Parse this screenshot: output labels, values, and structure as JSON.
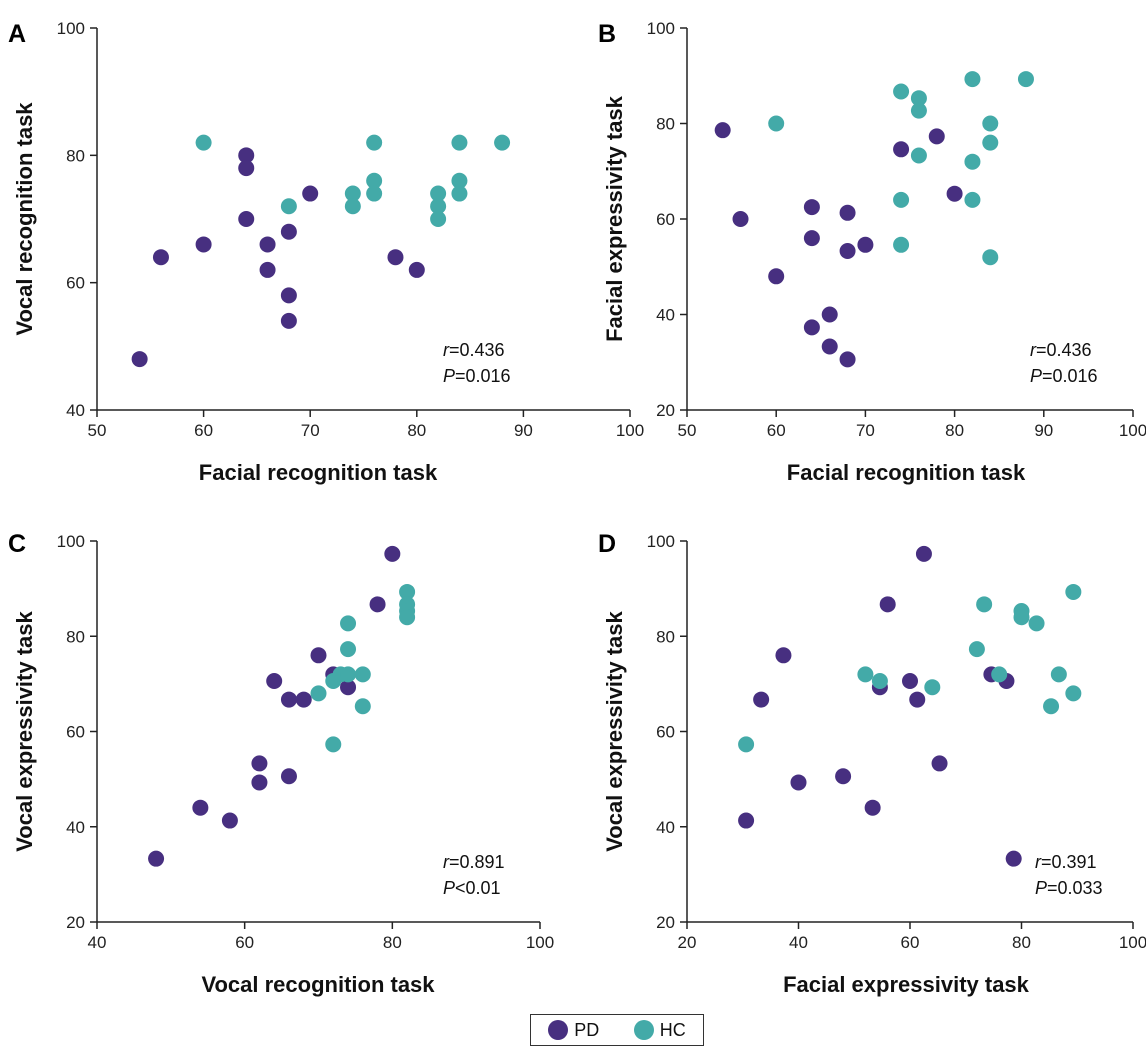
{
  "colors": {
    "PD": "#472f80",
    "HC": "#43aaa8",
    "axis": "#222222"
  },
  "legend": [
    {
      "key": "PD",
      "label": "PD"
    },
    {
      "key": "HC",
      "label": "HC"
    }
  ],
  "chart_data": [
    {
      "type": "scatter",
      "panel": "A",
      "xlabel": "Facial recognition task",
      "ylabel": "Vocal recognition task",
      "xlim": [
        50,
        100
      ],
      "ylim": [
        40,
        100
      ],
      "xticks": [
        50,
        60,
        70,
        80,
        90,
        100
      ],
      "yticks": [
        40,
        60,
        80,
        100
      ],
      "stat": {
        "r_label": "r",
        "r_value": "=0.436",
        "p_label": "P",
        "p_value": "=0.016"
      },
      "series": [
        {
          "name": "PD",
          "points": [
            [
              54,
              48
            ],
            [
              56,
              64
            ],
            [
              60,
              66
            ],
            [
              64,
              80
            ],
            [
              64,
              78
            ],
            [
              64,
              70
            ],
            [
              66,
              66
            ],
            [
              66,
              62
            ],
            [
              68,
              68
            ],
            [
              68,
              58
            ],
            [
              68,
              54
            ],
            [
              70,
              74
            ],
            [
              78,
              64
            ],
            [
              80,
              62
            ]
          ]
        },
        {
          "name": "HC",
          "points": [
            [
              60,
              82
            ],
            [
              68,
              72
            ],
            [
              74,
              74
            ],
            [
              74,
              72
            ],
            [
              76,
              82
            ],
            [
              76,
              76
            ],
            [
              76,
              74
            ],
            [
              82,
              74
            ],
            [
              82,
              72
            ],
            [
              82,
              70
            ],
            [
              84,
              82
            ],
            [
              84,
              76
            ],
            [
              84,
              74
            ],
            [
              88,
              82
            ]
          ]
        }
      ]
    },
    {
      "type": "scatter",
      "panel": "B",
      "xlabel": "Facial recognition task",
      "ylabel": "Facial expressivity task",
      "xlim": [
        50,
        100
      ],
      "ylim": [
        20,
        100
      ],
      "xticks": [
        50,
        60,
        70,
        80,
        90,
        100
      ],
      "yticks": [
        20,
        40,
        60,
        80,
        100
      ],
      "stat": {
        "r_label": "r",
        "r_value": "=0.436",
        "p_label": "P",
        "p_value": "=0.016"
      },
      "series": [
        {
          "name": "PD",
          "points": [
            [
              54,
              78.6
            ],
            [
              56,
              60
            ],
            [
              60,
              48
            ],
            [
              64,
              62.5
            ],
            [
              64,
              56
            ],
            [
              64,
              37.3
            ],
            [
              66,
              40
            ],
            [
              66,
              33.3
            ],
            [
              68,
              61.3
            ],
            [
              68,
              53.3
            ],
            [
              68,
              30.6
            ],
            [
              70,
              54.6
            ],
            [
              74,
              74.6
            ],
            [
              78,
              77.3
            ],
            [
              80,
              65.3
            ]
          ]
        },
        {
          "name": "HC",
          "points": [
            [
              60,
              80
            ],
            [
              74,
              86.7
            ],
            [
              74,
              64
            ],
            [
              74,
              54.6
            ],
            [
              76,
              85.3
            ],
            [
              76,
              82.7
            ],
            [
              76,
              73.3
            ],
            [
              82,
              89.3
            ],
            [
              82,
              72
            ],
            [
              82,
              64
            ],
            [
              84,
              80
            ],
            [
              84,
              76
            ],
            [
              84,
              52
            ],
            [
              88,
              89.3
            ]
          ]
        }
      ]
    },
    {
      "type": "scatter",
      "panel": "C",
      "xlabel": "Vocal recognition task",
      "ylabel": "Vocal expressivity task",
      "xlim": [
        40,
        100
      ],
      "ylim": [
        20,
        100
      ],
      "xticks": [
        40,
        60,
        80,
        100
      ],
      "yticks": [
        20,
        40,
        60,
        80,
        100
      ],
      "stat": {
        "r_label": "r",
        "r_value": "=0.891",
        "p_label": "P",
        "p_value": "<0.01"
      },
      "series": [
        {
          "name": "PD",
          "points": [
            [
              48,
              33.3
            ],
            [
              54,
              44
            ],
            [
              58,
              41.3
            ],
            [
              62,
              53.3
            ],
            [
              62,
              49.3
            ],
            [
              64,
              70.6
            ],
            [
              66,
              66.7
            ],
            [
              66,
              50.6
            ],
            [
              68,
              66.7
            ],
            [
              70,
              76
            ],
            [
              72,
              72
            ],
            [
              74,
              69.3
            ],
            [
              78,
              86.7
            ],
            [
              80,
              97.3
            ]
          ]
        },
        {
          "name": "HC",
          "points": [
            [
              70,
              68
            ],
            [
              72,
              70.6
            ],
            [
              72,
              57.3
            ],
            [
              73,
              72
            ],
            [
              74,
              82.7
            ],
            [
              74,
              77.3
            ],
            [
              74,
              72
            ],
            [
              76,
              72
            ],
            [
              76,
              65.3
            ],
            [
              82,
              89.3
            ],
            [
              82,
              86.7
            ],
            [
              82,
              85.3
            ],
            [
              82,
              84
            ]
          ]
        }
      ]
    },
    {
      "type": "scatter",
      "panel": "D",
      "xlabel": "Facial expressivity task",
      "ylabel": "Vocal expressivity task",
      "xlim": [
        20,
        100
      ],
      "ylim": [
        20,
        100
      ],
      "xticks": [
        20,
        40,
        60,
        80,
        100
      ],
      "yticks": [
        20,
        40,
        60,
        80,
        100
      ],
      "stat": {
        "r_label": "r",
        "r_value": "=0.391",
        "p_label": "P",
        "p_value": "=0.033"
      },
      "series": [
        {
          "name": "PD",
          "points": [
            [
              30.6,
              41.3
            ],
            [
              33.3,
              66.7
            ],
            [
              37.3,
              76
            ],
            [
              40,
              49.3
            ],
            [
              48,
              50.6
            ],
            [
              53.3,
              44
            ],
            [
              54.6,
              69.3
            ],
            [
              56,
              86.7
            ],
            [
              60,
              70.6
            ],
            [
              61.3,
              66.7
            ],
            [
              62.5,
              97.3
            ],
            [
              65.3,
              53.3
            ],
            [
              74.6,
              72
            ],
            [
              77.3,
              70.6
            ],
            [
              78.6,
              33.3
            ]
          ]
        },
        {
          "name": "HC",
          "points": [
            [
              30.6,
              57.3
            ],
            [
              52,
              72
            ],
            [
              54.6,
              70.6
            ],
            [
              64,
              69.3
            ],
            [
              72,
              77.3
            ],
            [
              73.3,
              86.7
            ],
            [
              76,
              72
            ],
            [
              80,
              85.3
            ],
            [
              80,
              84
            ],
            [
              82.7,
              82.7
            ],
            [
              85.3,
              65.3
            ],
            [
              86.7,
              72
            ],
            [
              89.3,
              89.3
            ],
            [
              89.3,
              68
            ]
          ]
        }
      ]
    }
  ]
}
